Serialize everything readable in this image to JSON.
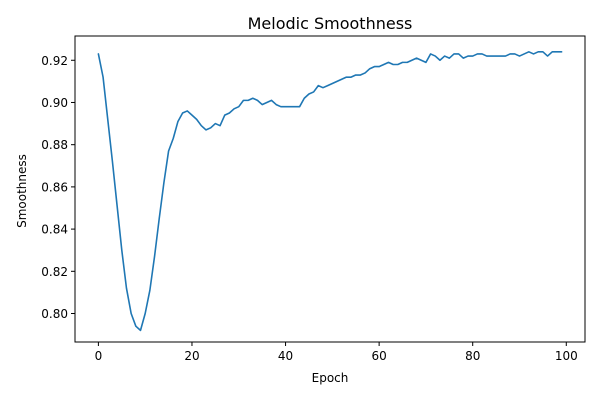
{
  "chart_data": {
    "type": "line",
    "title": "Melodic Smoothness",
    "xlabel": "Epoch",
    "ylabel": "Smoothness",
    "xlim": [
      -5,
      104
    ],
    "ylim": [
      0.7865,
      0.9315
    ],
    "xticks": [
      0,
      20,
      40,
      60,
      80,
      100
    ],
    "yticks": [
      0.8,
      0.82,
      0.84,
      0.86,
      0.88,
      0.9,
      0.92
    ],
    "ytick_labels": [
      "0.80",
      "0.82",
      "0.84",
      "0.86",
      "0.88",
      "0.90",
      "0.92"
    ],
    "grid": false,
    "series": [
      {
        "color": "#1f77b4",
        "x": [
          0,
          1,
          2,
          3,
          4,
          5,
          6,
          7,
          8,
          9,
          10,
          11,
          12,
          13,
          14,
          15,
          16,
          17,
          18,
          19,
          20,
          21,
          22,
          23,
          24,
          25,
          26,
          27,
          28,
          29,
          30,
          31,
          32,
          33,
          34,
          35,
          36,
          37,
          38,
          39,
          40,
          41,
          42,
          43,
          44,
          45,
          46,
          47,
          48,
          49,
          50,
          51,
          52,
          53,
          54,
          55,
          56,
          57,
          58,
          59,
          60,
          61,
          62,
          63,
          64,
          65,
          66,
          67,
          68,
          69,
          70,
          71,
          72,
          73,
          74,
          75,
          76,
          77,
          78,
          79,
          80,
          81,
          82,
          83,
          84,
          85,
          86,
          87,
          88,
          89,
          90,
          91,
          92,
          93,
          94,
          95,
          96,
          97,
          98,
          99
        ],
        "y": [
          0.923,
          0.912,
          0.892,
          0.872,
          0.851,
          0.83,
          0.812,
          0.8,
          0.794,
          0.792,
          0.8,
          0.811,
          0.827,
          0.845,
          0.862,
          0.877,
          0.883,
          0.891,
          0.895,
          0.896,
          0.894,
          0.892,
          0.889,
          0.887,
          0.888,
          0.89,
          0.889,
          0.894,
          0.895,
          0.897,
          0.898,
          0.901,
          0.901,
          0.902,
          0.901,
          0.899,
          0.9,
          0.901,
          0.899,
          0.898,
          0.898,
          0.898,
          0.898,
          0.898,
          0.902,
          0.904,
          0.905,
          0.908,
          0.907,
          0.908,
          0.909,
          0.91,
          0.911,
          0.912,
          0.912,
          0.913,
          0.913,
          0.914,
          0.916,
          0.917,
          0.917,
          0.918,
          0.919,
          0.918,
          0.918,
          0.919,
          0.919,
          0.92,
          0.921,
          0.92,
          0.919,
          0.923,
          0.922,
          0.92,
          0.922,
          0.921,
          0.923,
          0.923,
          0.921,
          0.922,
          0.922,
          0.923,
          0.923,
          0.922,
          0.922,
          0.922,
          0.922,
          0.922,
          0.923,
          0.923,
          0.922,
          0.923,
          0.924,
          0.923,
          0.924,
          0.924,
          0.922,
          0.924,
          0.924,
          0.924
        ]
      }
    ]
  }
}
